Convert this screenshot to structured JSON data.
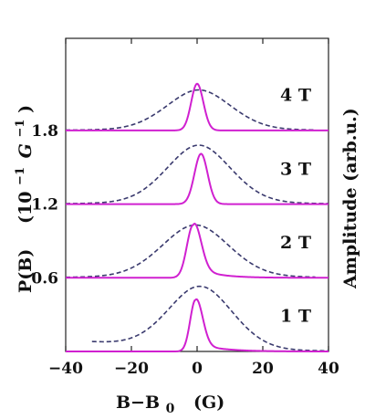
{
  "chart_data": {
    "type": "line",
    "xlabel_main": "B−B",
    "xlabel_sub": "0",
    "xlabel_unit": "(G)",
    "ylabel_main": "P(B)",
    "ylabel_unit_pre": "(10",
    "ylabel_unit_exp": "−1",
    "ylabel_unit_G": "G",
    "ylabel_unit_exp2": "−1",
    "ylabel_unit_post": ")",
    "ylabel_right": "Amplitude (arb.u.)",
    "xlim": [
      -40,
      40
    ],
    "ylim": [
      0,
      2.55
    ],
    "xticks": [
      {
        "value": -40,
        "label": "−40"
      },
      {
        "value": -20,
        "label": "−20"
      },
      {
        "value": 0,
        "label": "0"
      },
      {
        "value": 20,
        "label": "20"
      },
      {
        "value": 40,
        "label": "40"
      }
    ],
    "yticks": [
      {
        "value": 0.6,
        "label": "0.6"
      },
      {
        "value": 1.2,
        "label": "1.2"
      },
      {
        "value": 1.8,
        "label": "1.8"
      }
    ],
    "colors": {
      "distribution": "#d020d0",
      "amplitude": "#3a3a6e"
    },
    "panels": [
      {
        "label": "1 T",
        "baseline": 0.0,
        "pb": {
          "center": -0.5,
          "peak": 0.42,
          "sigma_left": 1.6,
          "sigma_right": 2.1,
          "tail_amp": 0.07,
          "tail_scale": 7
        },
        "amp": {
          "center": 1.0,
          "peak": 0.53,
          "gamma": 10,
          "x_start": -32,
          "x_end": 40,
          "left_slope": 0.0022
        }
      },
      {
        "label": "2 T",
        "baseline": 0.6,
        "pb": {
          "center": -1.2,
          "peak": 0.43,
          "sigma_left": 1.9,
          "sigma_right": 2.3,
          "tail_amp": 0.1,
          "tail_scale": 6
        },
        "amp": {
          "center": -0.5,
          "peak": 0.43,
          "gamma": 10.5,
          "x_start": -40,
          "x_end": 36,
          "left_slope": 0.0
        }
      },
      {
        "label": "3 T",
        "baseline": 1.2,
        "pb": {
          "center": 1.2,
          "peak": 0.41,
          "sigma_left": 2.0,
          "sigma_right": 2.0,
          "tail_amp": 0.0,
          "tail_scale": 5
        },
        "amp": {
          "center": 0.5,
          "peak": 0.48,
          "gamma": 10,
          "x_start": -40,
          "x_end": 40,
          "left_slope": 0.0
        }
      },
      {
        "label": "4 T",
        "baseline": 1.8,
        "pb": {
          "center": 0.0,
          "peak": 0.38,
          "sigma_left": 1.8,
          "sigma_right": 1.9,
          "tail_amp": 0.0,
          "tail_scale": 5
        },
        "amp": {
          "center": 0.5,
          "peak": 0.33,
          "gamma": 10,
          "x_start": -40,
          "x_end": 36,
          "left_slope": 0.0
        }
      }
    ]
  }
}
